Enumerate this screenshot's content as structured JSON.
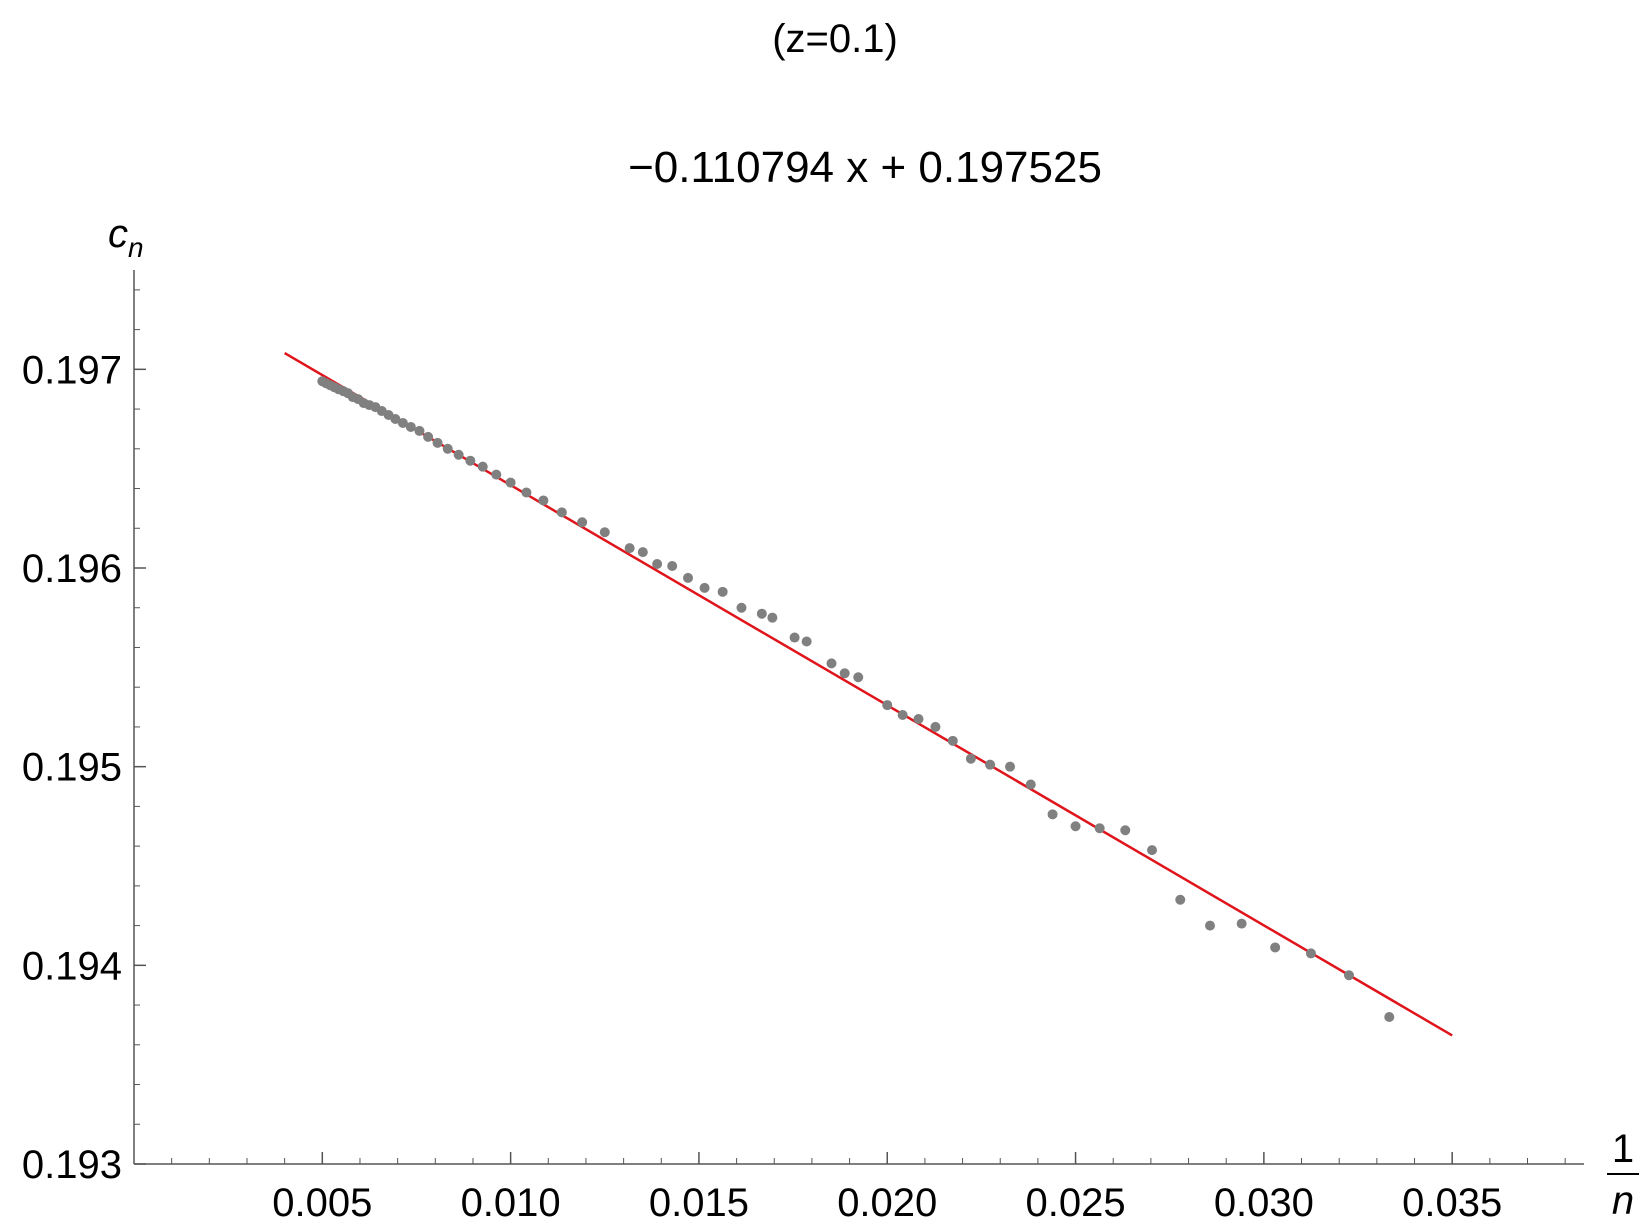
{
  "chart_data": {
    "type": "scatter",
    "title": "(z=0.1)",
    "subtitle": "−0.110794 x + 0.197525",
    "ylabel": "c",
    "ylabel_subscript": "n",
    "xlabel_numerator": "1",
    "xlabel_denominator": "n",
    "xlim": [
      0.0,
      0.0385
    ],
    "ylim": [
      0.193,
      0.1975
    ],
    "x_ticks": [
      {
        "value": 0.005,
        "label": "0.005"
      },
      {
        "value": 0.01,
        "label": "0.010"
      },
      {
        "value": 0.015,
        "label": "0.015"
      },
      {
        "value": 0.02,
        "label": "0.020"
      },
      {
        "value": 0.025,
        "label": "0.025"
      },
      {
        "value": 0.03,
        "label": "0.030"
      },
      {
        "value": 0.035,
        "label": "0.035"
      }
    ],
    "y_ticks": [
      {
        "value": 0.193,
        "label": "0.193"
      },
      {
        "value": 0.194,
        "label": "0.194"
      },
      {
        "value": 0.195,
        "label": "0.195"
      },
      {
        "value": 0.196,
        "label": "0.196"
      },
      {
        "value": 0.197,
        "label": "0.197"
      }
    ],
    "grid": false,
    "fit_line": {
      "slope": -0.110794,
      "intercept": 0.197525,
      "x_range": [
        0.004,
        0.035
      ],
      "color": "#e0141b"
    },
    "point_color": "#808080",
    "points": [
      [
        0.005,
        0.19694
      ],
      [
        0.0051,
        0.19693
      ],
      [
        0.00521,
        0.19692
      ],
      [
        0.00532,
        0.19691
      ],
      [
        0.00543,
        0.1969
      ],
      [
        0.00556,
        0.19689
      ],
      [
        0.00568,
        0.19688
      ],
      [
        0.00581,
        0.19686
      ],
      [
        0.00595,
        0.19685
      ],
      [
        0.0061,
        0.19683
      ],
      [
        0.00625,
        0.19682
      ],
      [
        0.00641,
        0.19681
      ],
      [
        0.00658,
        0.19679
      ],
      [
        0.00676,
        0.19677
      ],
      [
        0.00694,
        0.19675
      ],
      [
        0.00714,
        0.19673
      ],
      [
        0.00735,
        0.19671
      ],
      [
        0.00758,
        0.19669
      ],
      [
        0.00781,
        0.19666
      ],
      [
        0.00806,
        0.19663
      ],
      [
        0.00833,
        0.1966
      ],
      [
        0.00862,
        0.19657
      ],
      [
        0.00893,
        0.19654
      ],
      [
        0.00926,
        0.19651
      ],
      [
        0.00962,
        0.19647
      ],
      [
        0.01,
        0.19643
      ],
      [
        0.01042,
        0.19638
      ],
      [
        0.01087,
        0.19634
      ],
      [
        0.01136,
        0.19628
      ],
      [
        0.0119,
        0.19623
      ],
      [
        0.0125,
        0.19618
      ],
      [
        0.01316,
        0.1961
      ],
      [
        0.01351,
        0.19608
      ],
      [
        0.01389,
        0.19602
      ],
      [
        0.01429,
        0.19601
      ],
      [
        0.01471,
        0.19595
      ],
      [
        0.01515,
        0.1959
      ],
      [
        0.01563,
        0.19588
      ],
      [
        0.01613,
        0.1958
      ],
      [
        0.01667,
        0.19577
      ],
      [
        0.01695,
        0.19575
      ],
      [
        0.01754,
        0.19565
      ],
      [
        0.01786,
        0.19563
      ],
      [
        0.01852,
        0.19552
      ],
      [
        0.01887,
        0.19547
      ],
      [
        0.01923,
        0.19545
      ],
      [
        0.02,
        0.19531
      ],
      [
        0.02041,
        0.19526
      ],
      [
        0.02083,
        0.19524
      ],
      [
        0.02128,
        0.1952
      ],
      [
        0.02174,
        0.19513
      ],
      [
        0.02222,
        0.19504
      ],
      [
        0.02273,
        0.19501
      ],
      [
        0.02326,
        0.195
      ],
      [
        0.02381,
        0.19491
      ],
      [
        0.02439,
        0.19476
      ],
      [
        0.025,
        0.1947
      ],
      [
        0.02564,
        0.19469
      ],
      [
        0.02632,
        0.19468
      ],
      [
        0.02703,
        0.19458
      ],
      [
        0.02778,
        0.19433
      ],
      [
        0.02857,
        0.1942
      ],
      [
        0.02941,
        0.19421
      ],
      [
        0.0303,
        0.19409
      ],
      [
        0.03125,
        0.19406
      ],
      [
        0.03226,
        0.19395
      ],
      [
        0.03333,
        0.19374
      ]
    ]
  }
}
